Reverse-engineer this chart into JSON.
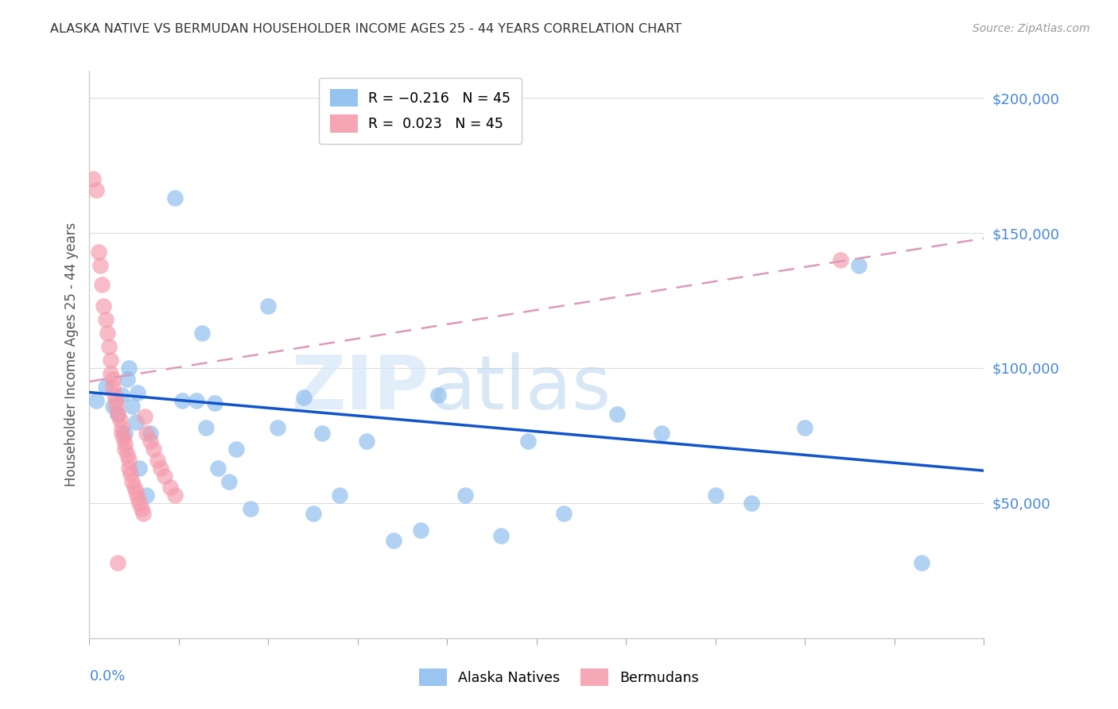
{
  "title": "ALASKA NATIVE VS BERMUDAN HOUSEHOLDER INCOME AGES 25 - 44 YEARS CORRELATION CHART",
  "source": "Source: ZipAtlas.com",
  "ylabel": "Householder Income Ages 25 - 44 years",
  "xlim": [
    0.0,
    0.5
  ],
  "ylim": [
    0,
    210000
  ],
  "yticks": [
    50000,
    100000,
    150000,
    200000
  ],
  "ytick_labels": [
    "$50,000",
    "$100,000",
    "$150,000",
    "$200,000"
  ],
  "alaska_color": "#88bbee",
  "bermuda_color": "#f499aa",
  "alaska_line_color": "#1155cc",
  "bermuda_line_color": "#dd99bb",
  "alaska_natives_x": [
    0.004,
    0.009,
    0.013,
    0.016,
    0.018,
    0.02,
    0.021,
    0.022,
    0.024,
    0.026,
    0.027,
    0.028,
    0.032,
    0.034,
    0.048,
    0.052,
    0.06,
    0.063,
    0.065,
    0.07,
    0.072,
    0.078,
    0.082,
    0.09,
    0.1,
    0.105,
    0.12,
    0.125,
    0.13,
    0.14,
    0.155,
    0.17,
    0.185,
    0.195,
    0.21,
    0.23,
    0.245,
    0.265,
    0.295,
    0.32,
    0.35,
    0.37,
    0.4,
    0.43,
    0.465
  ],
  "alaska_natives_y": [
    88000,
    93000,
    86000,
    83000,
    90000,
    76000,
    96000,
    100000,
    86000,
    80000,
    91000,
    63000,
    53000,
    76000,
    163000,
    88000,
    88000,
    113000,
    78000,
    87000,
    63000,
    58000,
    70000,
    48000,
    123000,
    78000,
    89000,
    46000,
    76000,
    53000,
    73000,
    36000,
    40000,
    90000,
    53000,
    38000,
    73000,
    46000,
    83000,
    76000,
    53000,
    50000,
    78000,
    138000,
    28000
  ],
  "bermudans_x": [
    0.002,
    0.004,
    0.005,
    0.006,
    0.007,
    0.008,
    0.009,
    0.01,
    0.011,
    0.012,
    0.012,
    0.013,
    0.013,
    0.014,
    0.015,
    0.015,
    0.016,
    0.017,
    0.018,
    0.018,
    0.019,
    0.02,
    0.02,
    0.021,
    0.022,
    0.022,
    0.023,
    0.024,
    0.025,
    0.026,
    0.027,
    0.028,
    0.029,
    0.03,
    0.031,
    0.032,
    0.034,
    0.036,
    0.038,
    0.04,
    0.042,
    0.045,
    0.048,
    0.42,
    0.016
  ],
  "bermudans_y": [
    170000,
    166000,
    143000,
    138000,
    131000,
    123000,
    118000,
    113000,
    108000,
    103000,
    98000,
    96000,
    93000,
    90000,
    88000,
    86000,
    83000,
    81000,
    78000,
    76000,
    74000,
    72000,
    70000,
    68000,
    66000,
    63000,
    61000,
    58000,
    56000,
    54000,
    52000,
    50000,
    48000,
    46000,
    82000,
    76000,
    73000,
    70000,
    66000,
    63000,
    60000,
    56000,
    53000,
    140000,
    28000
  ],
  "alaska_line_x0": 0.0,
  "alaska_line_y0": 91000,
  "alaska_line_x1": 0.5,
  "alaska_line_y1": 62000,
  "bermuda_line_x0": 0.0,
  "bermuda_line_y0": 95000,
  "bermuda_line_x1": 0.5,
  "bermuda_line_y1": 148000
}
